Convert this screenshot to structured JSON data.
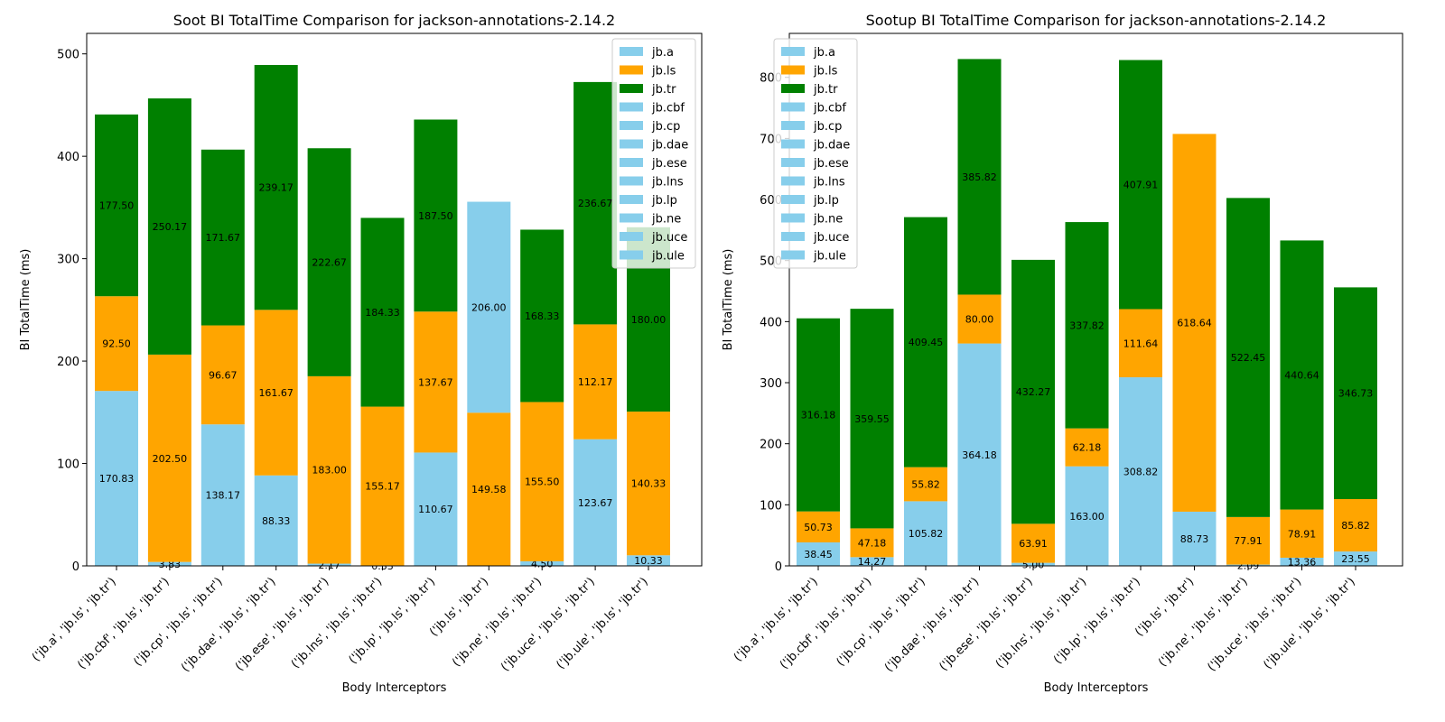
{
  "chart_data": [
    {
      "type": "bar",
      "stacked": true,
      "title": "Soot BI TotalTime Comparison for jackson-annotations-2.14.2",
      "xlabel": "Body Interceptors",
      "ylabel": "BI TotalTime (ms)",
      "ylim": [
        0,
        520
      ],
      "yticks": [
        0,
        100,
        200,
        300,
        400,
        500
      ],
      "legend_position": "upper right",
      "categories": [
        "('jb.a', 'jb.ls', 'jb.tr')",
        "('jb.cbf', 'jb.ls', 'jb.tr')",
        "('jb.cp', 'jb.ls', 'jb.tr')",
        "('jb.dae', 'jb.ls', 'jb.tr')",
        "('jb.ese', 'jb.ls', 'jb.tr')",
        "('jb.lns', 'jb.ls', 'jb.tr')",
        "('jb.lp', 'jb.ls', 'jb.tr')",
        "('jb.ls', 'jb.tr')",
        "('jb.ne', 'jb.ls', 'jb.tr')",
        "('jb.uce', 'jb.ls', 'jb.tr')",
        "('jb.ule', 'jb.ls', 'jb.tr')"
      ],
      "stacks": [
        [
          {
            "s": "a",
            "v": 170.83,
            "l": "170.83"
          },
          {
            "s": "ls",
            "v": 92.5,
            "l": "92.50"
          },
          {
            "s": "tr",
            "v": 177.5,
            "l": "177.50"
          }
        ],
        [
          {
            "s": "a",
            "v": 3.83,
            "l": "3.83"
          },
          {
            "s": "ls",
            "v": 202.5,
            "l": "202.50"
          },
          {
            "s": "tr",
            "v": 250.17,
            "l": "250.17"
          }
        ],
        [
          {
            "s": "a",
            "v": 138.17,
            "l": "138.17"
          },
          {
            "s": "ls",
            "v": 96.67,
            "l": "96.67"
          },
          {
            "s": "tr",
            "v": 171.67,
            "l": "171.67"
          }
        ],
        [
          {
            "s": "a",
            "v": 88.33,
            "l": "88.33"
          },
          {
            "s": "ls",
            "v": 161.67,
            "l": "161.67"
          },
          {
            "s": "tr",
            "v": 239.17,
            "l": "239.17"
          }
        ],
        [
          {
            "s": "a",
            "v": 2.17,
            "l": "2.17"
          },
          {
            "s": "ls",
            "v": 183.0,
            "l": "183.00"
          },
          {
            "s": "tr",
            "v": 222.67,
            "l": "222.67"
          }
        ],
        [
          {
            "s": "a",
            "v": 0.33,
            "l": "0.33"
          },
          {
            "s": "ls",
            "v": 155.17,
            "l": "155.17"
          },
          {
            "s": "tr",
            "v": 184.33,
            "l": "184.33"
          }
        ],
        [
          {
            "s": "a",
            "v": 110.67,
            "l": "110.67"
          },
          {
            "s": "ls",
            "v": 137.67,
            "l": "137.67"
          },
          {
            "s": "tr",
            "v": 187.5,
            "l": "187.50"
          }
        ],
        [
          {
            "s": "ls",
            "v": 149.58,
            "l": "149.58"
          },
          {
            "s": "a",
            "v": 206.0,
            "l": "206.00"
          }
        ],
        [
          {
            "s": "a",
            "v": 4.5,
            "l": "4.50"
          },
          {
            "s": "ls",
            "v": 155.5,
            "l": "155.50"
          },
          {
            "s": "tr",
            "v": 168.33,
            "l": "168.33"
          }
        ],
        [
          {
            "s": "a",
            "v": 123.67,
            "l": "123.67"
          },
          {
            "s": "ls",
            "v": 112.17,
            "l": "112.17"
          },
          {
            "s": "tr",
            "v": 236.67,
            "l": "236.67"
          }
        ],
        [
          {
            "s": "a",
            "v": 10.33,
            "l": "10.33"
          },
          {
            "s": "ls",
            "v": 140.33,
            "l": "140.33"
          },
          {
            "s": "tr",
            "v": 180.0,
            "l": "180.00"
          }
        ]
      ]
    },
    {
      "type": "bar",
      "stacked": true,
      "title": "Sootup BI TotalTime Comparison for jackson-annotations-2.14.2",
      "xlabel": "Body Interceptors",
      "ylabel": "BI TotalTime (ms)",
      "ylim": [
        0,
        872
      ],
      "yticks": [
        0,
        100,
        200,
        300,
        400,
        500,
        600,
        700,
        800
      ],
      "legend_position": "upper left",
      "categories": [
        "('jb.a', 'jb.ls', 'jb.tr')",
        "('jb.cbf', 'jb.ls', 'jb.tr')",
        "('jb.cp', 'jb.ls', 'jb.tr')",
        "('jb.dae', 'jb.ls', 'jb.tr')",
        "('jb.ese', 'jb.ls', 'jb.tr')",
        "('jb.lns', 'jb.ls', 'jb.tr')",
        "('jb.lp', 'jb.ls', 'jb.tr')",
        "('jb.ls', 'jb.tr')",
        "('jb.ne', 'jb.ls', 'jb.tr')",
        "('jb.uce', 'jb.ls', 'jb.tr')",
        "('jb.ule', 'jb.ls', 'jb.tr')"
      ],
      "stacks": [
        [
          {
            "s": "a",
            "v": 38.45,
            "l": "38.45"
          },
          {
            "s": "ls",
            "v": 50.73,
            "l": "50.73"
          },
          {
            "s": "tr",
            "v": 316.18,
            "l": "316.18"
          }
        ],
        [
          {
            "s": "a",
            "v": 14.27,
            "l": "14.27"
          },
          {
            "s": "ls",
            "v": 47.18,
            "l": "47.18"
          },
          {
            "s": "tr",
            "v": 359.55,
            "l": "359.55"
          }
        ],
        [
          {
            "s": "a",
            "v": 105.82,
            "l": "105.82"
          },
          {
            "s": "ls",
            "v": 55.82,
            "l": "55.82"
          },
          {
            "s": "tr",
            "v": 409.45,
            "l": "409.45"
          }
        ],
        [
          {
            "s": "a",
            "v": 364.18,
            "l": "364.18"
          },
          {
            "s": "ls",
            "v": 80.0,
            "l": "80.00"
          },
          {
            "s": "tr",
            "v": 385.82,
            "l": "385.82"
          }
        ],
        [
          {
            "s": "a",
            "v": 5.0,
            "l": "5.00"
          },
          {
            "s": "ls",
            "v": 63.91,
            "l": "63.91"
          },
          {
            "s": "tr",
            "v": 432.27,
            "l": "432.27"
          }
        ],
        [
          {
            "s": "a",
            "v": 163.0,
            "l": "163.00"
          },
          {
            "s": "ls",
            "v": 62.18,
            "l": "62.18"
          },
          {
            "s": "tr",
            "v": 337.82,
            "l": "337.82"
          }
        ],
        [
          {
            "s": "a",
            "v": 308.82,
            "l": "308.82"
          },
          {
            "s": "ls",
            "v": 111.64,
            "l": "111.64"
          },
          {
            "s": "tr",
            "v": 407.91,
            "l": "407.91"
          }
        ],
        [
          {
            "s": "a",
            "v": 88.73,
            "l": "88.73"
          },
          {
            "s": "ls",
            "v": 618.64,
            "l": "618.64"
          }
        ],
        [
          {
            "s": "a",
            "v": 2.09,
            "l": "2.09"
          },
          {
            "s": "ls",
            "v": 77.91,
            "l": "77.91"
          },
          {
            "s": "tr",
            "v": 522.45,
            "l": "522.45"
          }
        ],
        [
          {
            "s": "a",
            "v": 13.36,
            "l": "13.36"
          },
          {
            "s": "ls",
            "v": 78.91,
            "l": "78.91"
          },
          {
            "s": "tr",
            "v": 440.64,
            "l": "440.64"
          }
        ],
        [
          {
            "s": "a",
            "v": 23.55,
            "l": "23.55"
          },
          {
            "s": "ls",
            "v": 85.82,
            "l": "85.82"
          },
          {
            "s": "tr",
            "v": 346.73,
            "l": "346.73"
          }
        ]
      ]
    }
  ],
  "legend": {
    "entries": [
      {
        "name": "jb.a",
        "series": "a"
      },
      {
        "name": "jb.ls",
        "series": "ls"
      },
      {
        "name": "jb.tr",
        "series": "tr"
      },
      {
        "name": "jb.cbf",
        "series": "a"
      },
      {
        "name": "jb.cp",
        "series": "a"
      },
      {
        "name": "jb.dae",
        "series": "a"
      },
      {
        "name": "jb.ese",
        "series": "a"
      },
      {
        "name": "jb.lns",
        "series": "a"
      },
      {
        "name": "jb.lp",
        "series": "a"
      },
      {
        "name": "jb.ne",
        "series": "a"
      },
      {
        "name": "jb.uce",
        "series": "a"
      },
      {
        "name": "jb.ule",
        "series": "a"
      }
    ]
  },
  "colors": {
    "a": "#87ceeb",
    "ls": "#ffa500",
    "tr": "#008000"
  }
}
